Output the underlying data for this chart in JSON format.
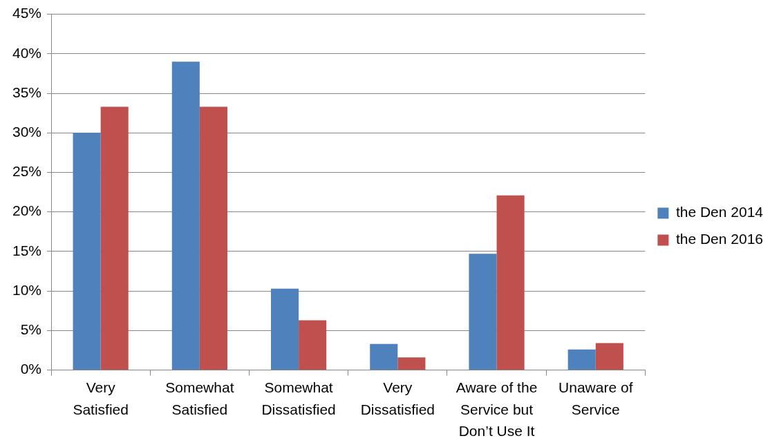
{
  "chart_data": {
    "type": "bar",
    "categories": [
      "Very Satisfied",
      "Somewhat Satisfied",
      "Somewhat Dissatisfied",
      "Very Dissatisfied",
      "Aware of the Service but Don’t Use It",
      "Unaware of Service"
    ],
    "series": [
      {
        "name": "the Den 2014",
        "color": "#4f81bd",
        "values": [
          30.0,
          39.0,
          10.3,
          3.3,
          14.7,
          2.6
        ]
      },
      {
        "name": "the Den 2016",
        "color": "#c0504d",
        "values": [
          33.3,
          33.3,
          6.3,
          1.6,
          22.1,
          3.4
        ]
      }
    ],
    "ylim": [
      0,
      45
    ],
    "yticks": [
      {
        "value": 0,
        "label": "0%"
      },
      {
        "value": 5,
        "label": "5%"
      },
      {
        "value": 10,
        "label": "10%"
      },
      {
        "value": 15,
        "label": "15%"
      },
      {
        "value": 20,
        "label": "20%"
      },
      {
        "value": 25,
        "label": "25%"
      },
      {
        "value": 30,
        "label": "30%"
      },
      {
        "value": 35,
        "label": "35%"
      },
      {
        "value": 40,
        "label": "40%"
      },
      {
        "value": 45,
        "label": "45%"
      }
    ],
    "grid": "y",
    "legend": "right"
  }
}
